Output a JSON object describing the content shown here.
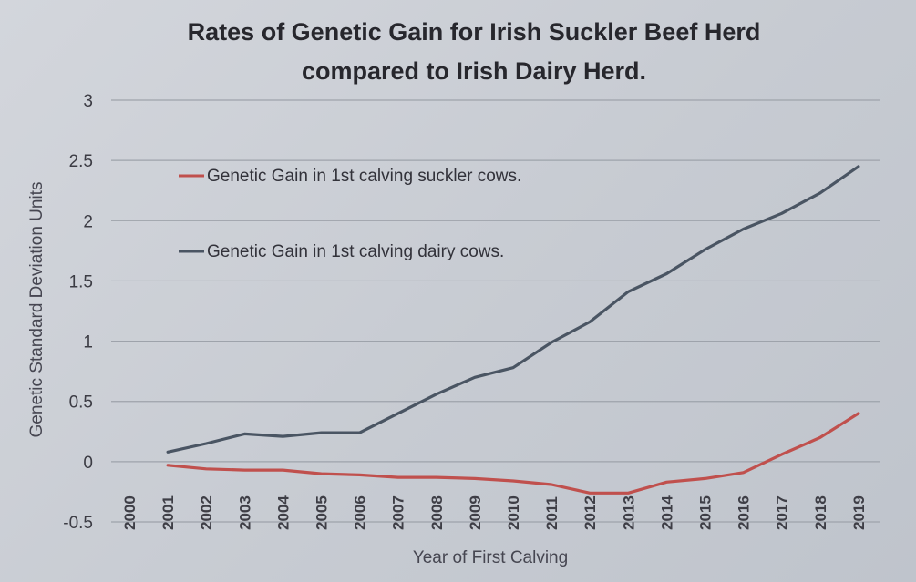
{
  "chart_data": {
    "type": "line",
    "title": "Rates of Genetic Gain for Irish Suckler Beef Herd",
    "subtitle": "compared to Irish Dairy Herd.",
    "xlabel": "Year of First Calving",
    "ylabel": "Genetic Standard Deviation Units",
    "categories": [
      "2000",
      "2001",
      "2002",
      "2003",
      "2004",
      "2005",
      "2006",
      "2007",
      "2008",
      "2009",
      "2010",
      "2011",
      "2012",
      "2013",
      "2014",
      "2015",
      "2016",
      "2017",
      "2018",
      "2019"
    ],
    "ylim": [
      -0.5,
      3
    ],
    "yticks": [
      "-0.5",
      "0",
      "0.5",
      "1",
      "1.5",
      "2",
      "2.5",
      "3"
    ],
    "grid": true,
    "legend_position": "upper-left",
    "series": [
      {
        "name": "Genetic Gain in 1st calving suckler cows.",
        "color": "#c0504d",
        "values": [
          null,
          -0.03,
          -0.06,
          -0.07,
          -0.07,
          -0.1,
          -0.11,
          -0.13,
          -0.13,
          -0.14,
          -0.16,
          -0.19,
          -0.26,
          -0.26,
          -0.17,
          -0.14,
          -0.09,
          0.06,
          0.2,
          0.4
        ]
      },
      {
        "name": "Genetic Gain in 1st calving dairy cows.",
        "color": "#4a5563",
        "values": [
          null,
          0.08,
          0.15,
          0.23,
          0.21,
          0.24,
          0.24,
          0.4,
          0.56,
          0.7,
          0.78,
          0.99,
          1.16,
          1.41,
          1.56,
          1.76,
          1.93,
          2.06,
          2.23,
          2.45
        ]
      }
    ]
  }
}
